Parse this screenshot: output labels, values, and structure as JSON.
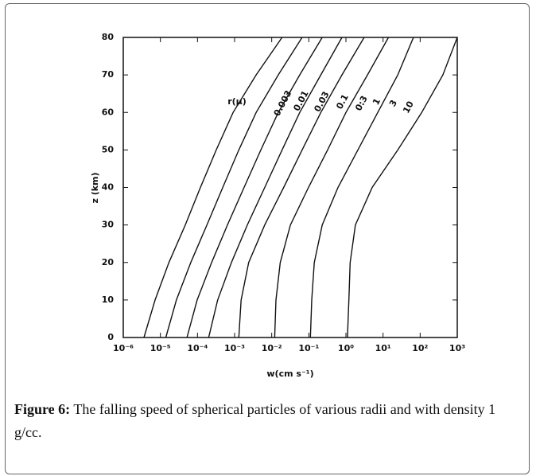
{
  "chart_data": {
    "type": "line",
    "xscale": "log",
    "color": "#111111",
    "y_label": "z (km)",
    "x_label": "w(cm s⁻¹)",
    "annotation": "r(μ)",
    "y": [
      0,
      10,
      20,
      30,
      40,
      50,
      60,
      70,
      80
    ],
    "series": [
      {
        "name": "0.003",
        "x": [
          3.6e-06,
          7.2e-06,
          1.7e-05,
          4.7e-05,
          0.00012,
          0.00032,
          0.00091,
          0.0038,
          0.019
        ]
      },
      {
        "name": "0.01",
        "x": [
          1.4e-05,
          2.7e-05,
          6.6e-05,
          0.00018,
          0.00048,
          0.0013,
          0.0038,
          0.015,
          0.066
        ]
      },
      {
        "name": "0.03",
        "x": [
          5.2e-05,
          9.8e-05,
          0.00024,
          0.00064,
          0.0018,
          0.0051,
          0.015,
          0.057,
          0.23
        ]
      },
      {
        "name": "0.1",
        "x": [
          0.0002,
          0.00035,
          0.00082,
          0.0022,
          0.0065,
          0.019,
          0.057,
          0.21,
          0.78
        ]
      },
      {
        "name": "0:3",
        "x": [
          0.0013,
          0.0015,
          0.0024,
          0.0065,
          0.021,
          0.066,
          0.21,
          0.78,
          3.1
        ]
      },
      {
        "name": "1",
        "x": [
          0.012,
          0.013,
          0.017,
          0.032,
          0.098,
          0.32,
          1.0,
          3.8,
          14
        ]
      },
      {
        "name": "3",
        "x": [
          0.11,
          0.12,
          0.14,
          0.23,
          0.61,
          2.1,
          7.2,
          25,
          66
        ]
      },
      {
        "name": "10",
        "x": [
          1.1,
          1.2,
          1.3,
          1.8,
          5.1,
          25,
          110,
          410,
          1000
        ]
      }
    ],
    "xlim": [
      1e-06,
      1000
    ],
    "ylim": [
      0,
      80
    ],
    "xticks": [
      {
        "value": 1e-06,
        "label": "10⁻⁶"
      },
      {
        "value": 1e-05,
        "label": "10⁻⁵"
      },
      {
        "value": 0.0001,
        "label": "10⁻⁴"
      },
      {
        "value": 0.001,
        "label": "10⁻³"
      },
      {
        "value": 0.01,
        "label": "10⁻²"
      },
      {
        "value": 0.1,
        "label": "10⁻¹"
      },
      {
        "value": 1,
        "label": "10⁰"
      },
      {
        "value": 10,
        "label": "10¹"
      },
      {
        "value": 100,
        "label": "10²"
      },
      {
        "value": 1000,
        "label": "10³"
      }
    ],
    "yticks": [
      0,
      10,
      20,
      30,
      40,
      50,
      60,
      70,
      80
    ]
  },
  "caption": {
    "label": "Figure 6:",
    "text": "The falling speed of spherical particles of various radii and with density 1 g/cc."
  }
}
